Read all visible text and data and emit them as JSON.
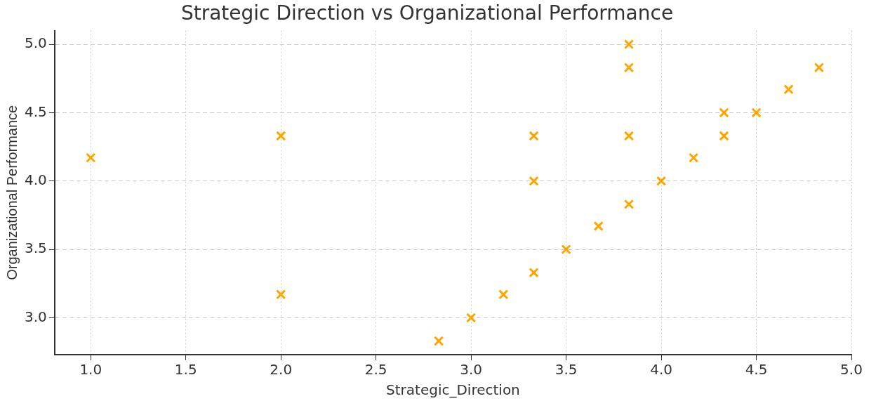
{
  "chart_data": {
    "type": "scatter",
    "title": "Strategic Direction vs Organizational Performance",
    "xlabel": "Strategic_Direction",
    "ylabel": "Organizational Performance",
    "series": [
      {
        "color": "#ffa500",
        "x": [
          1.0,
          2.0,
          2.0,
          2.83,
          3.0,
          3.17,
          3.33,
          3.33,
          3.33,
          3.5,
          3.67,
          3.83,
          3.83,
          3.83,
          3.83,
          4.0,
          4.17,
          4.33,
          4.33,
          4.5,
          4.67,
          4.83
        ],
        "values": [
          4.17,
          4.33,
          3.17,
          2.83,
          3.0,
          3.17,
          3.33,
          4.0,
          4.33,
          3.5,
          3.67,
          3.83,
          4.33,
          4.83,
          5.0,
          4.0,
          4.17,
          4.33,
          4.5,
          4.5,
          4.67,
          4.83
        ]
      }
    ],
    "xlim": [
      0.81,
      5.0
    ],
    "ylim": [
      2.73,
      5.1
    ],
    "xticks": [
      {
        "value": 1.0,
        "label": "1.0"
      },
      {
        "value": 1.5,
        "label": "1.5"
      },
      {
        "value": 2.0,
        "label": "2.0"
      },
      {
        "value": 2.5,
        "label": "2.5"
      },
      {
        "value": 3.0,
        "label": "3.0"
      },
      {
        "value": 3.5,
        "label": "3.5"
      },
      {
        "value": 4.0,
        "label": "4.0"
      },
      {
        "value": 4.5,
        "label": "4.5"
      },
      {
        "value": 5.0,
        "label": "5.0"
      }
    ],
    "yticks": [
      {
        "value": 3.0,
        "label": "3.0"
      },
      {
        "value": 3.5,
        "label": "3.5"
      },
      {
        "value": 4.0,
        "label": "4.0"
      },
      {
        "value": 4.5,
        "label": "4.5"
      },
      {
        "value": 5.0,
        "label": "5.0"
      }
    ],
    "grid": true,
    "marker": "cross",
    "legend": false
  }
}
